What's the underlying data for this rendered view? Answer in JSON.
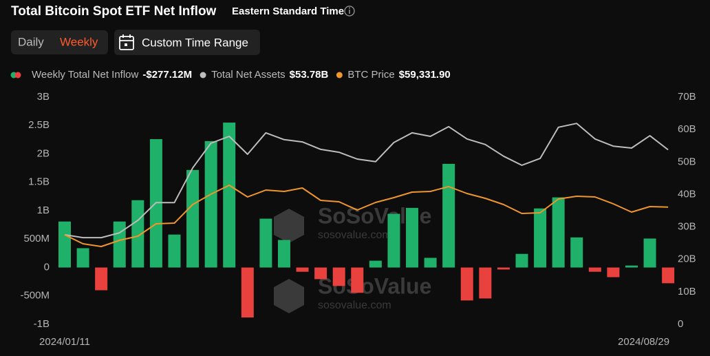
{
  "header": {
    "title": "Total Bitcoin Spot ETF Net Inflow",
    "timezone": "Eastern Standard Time",
    "tabs": [
      "Daily",
      "Weekly"
    ],
    "active_tab": 1,
    "custom_range": "Custom Time Range"
  },
  "watermark": {
    "brand": "SoSoValue",
    "site": "sosovalue.com"
  },
  "chart_data": {
    "type": "bar",
    "categories": [
      "2024/01/11",
      null,
      null,
      null,
      null,
      null,
      null,
      null,
      null,
      null,
      null,
      null,
      null,
      null,
      null,
      null,
      null,
      null,
      null,
      null,
      null,
      null,
      null,
      null,
      null,
      null,
      null,
      null,
      null,
      null,
      null,
      null,
      null,
      "2024/08/29"
    ],
    "series": [
      {
        "name": "Weekly Total Net Inflow",
        "type": "bar",
        "color": "#1fb16a",
        "negative_color": "#e8413e",
        "latest_label": "-$277.12M",
        "values": [
          810,
          340,
          -400,
          810,
          1185,
          2260,
          580,
          1717,
          2225,
          2551,
          -880,
          860,
          485,
          -75,
          -205,
          -325,
          -445,
          120,
          945,
          1050,
          170,
          1825,
          -580,
          -545,
          -35,
          240,
          1040,
          1235,
          530,
          -75,
          -170,
          35,
          510,
          -277.12
        ]
      },
      {
        "name": "Total Net Assets",
        "type": "line",
        "axis": "y2",
        "color": "#bdbdbd",
        "latest_label": "$53.78B",
        "values": [
          27.6,
          26.7,
          26.7,
          28.2,
          32.0,
          37.5,
          37.5,
          48.2,
          55.8,
          57.9,
          52.4,
          59.0,
          56.9,
          56.2,
          53.9,
          53.0,
          50.9,
          50.1,
          56.0,
          59.0,
          57.9,
          60.9,
          57.1,
          55.4,
          51.8,
          49.0,
          51.1,
          60.7,
          61.9,
          57.1,
          54.9,
          54.3,
          58.1,
          53.78
        ]
      },
      {
        "name": "BTC Price",
        "type": "line",
        "axis": "y3",
        "color": "#f0962a",
        "latest_label": "$59,331.90",
        "values": [
          45300,
          40770,
          39380,
          42520,
          44610,
          50880,
          51230,
          60640,
          65870,
          70400,
          64470,
          67960,
          67260,
          69000,
          62730,
          62030,
          57850,
          61680,
          64120,
          66910,
          67260,
          69700,
          66220,
          63780,
          60640,
          56110,
          56460,
          63430,
          64820,
          64470,
          60990,
          56810,
          59590,
          59331.9
        ]
      }
    ],
    "ylim": [
      -1000,
      3000
    ],
    "yticks": [
      {
        "value": -1000,
        "label": "-1B"
      },
      {
        "value": -500,
        "label": "-500M"
      },
      0,
      {
        "value": 500,
        "label": "500M"
      },
      {
        "value": 1000,
        "label": "1B"
      },
      {
        "value": 1500,
        "label": "1.5B"
      },
      {
        "value": 2000,
        "label": "2B"
      },
      {
        "value": 2500,
        "label": "2.5B"
      },
      {
        "value": 3000,
        "label": "3B"
      }
    ],
    "y2lim": [
      0,
      70
    ],
    "y2ticks": [
      0,
      {
        "value": 10,
        "label": "10B"
      },
      {
        "value": 20,
        "label": "20B"
      },
      {
        "value": 30,
        "label": "30B"
      },
      {
        "value": 40,
        "label": "40B"
      },
      {
        "value": 50,
        "label": "50B"
      },
      {
        "value": 60,
        "label": "60B"
      },
      {
        "value": 70,
        "label": "70B"
      }
    ],
    "y3lim": [
      0,
      115000
    ],
    "grid": false
  }
}
